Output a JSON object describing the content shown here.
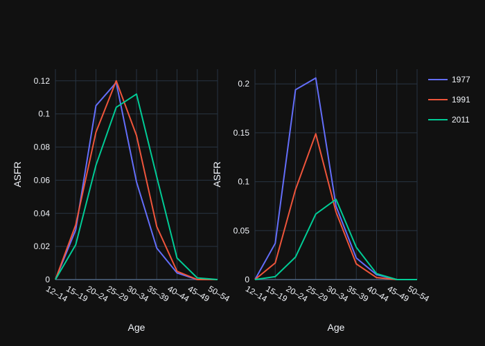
{
  "chart_data": {
    "type": "line",
    "categories": [
      "12–14",
      "15–19",
      "20–24",
      "25–29",
      "30–34",
      "35–39",
      "40–44",
      "45–49",
      "50–54"
    ],
    "legend": {
      "placement": "top-right",
      "entries": [
        "1977",
        "1991",
        "2011"
      ]
    },
    "colors": {
      "1977": "#636efa",
      "1991": "#ef553b",
      "2011": "#00cc96",
      "background": "#111111",
      "grid": "#283442",
      "text": "#f2f5fa"
    },
    "panels": [
      {
        "xlabel": "Age",
        "ylabel": "ASFR",
        "ylim": [
          0,
          0.127
        ],
        "yticks": [
          0,
          0.02,
          0.04,
          0.06,
          0.08,
          0.1,
          0.12
        ],
        "ytick_labels": [
          "0",
          "0.02",
          "0.04",
          "0.06",
          "0.08",
          "0.1",
          "0.12"
        ],
        "grid": true,
        "series": [
          {
            "name": "1977",
            "values": [
              0,
              0.03,
              0.105,
              0.119,
              0.059,
              0.019,
              0.004,
              0,
              0
            ]
          },
          {
            "name": "1991",
            "values": [
              0,
              0.033,
              0.089,
              0.12,
              0.087,
              0.032,
              0.005,
              0,
              0
            ]
          },
          {
            "name": "2011",
            "values": [
              0,
              0.021,
              0.069,
              0.104,
              0.112,
              0.062,
              0.013,
              0.001,
              0
            ]
          }
        ]
      },
      {
        "xlabel": "Age",
        "ylabel": "ASFR",
        "ylim": [
          0,
          0.215
        ],
        "yticks": [
          0,
          0.05,
          0.1,
          0.15,
          0.2
        ],
        "ytick_labels": [
          "0",
          "0.05",
          "0.1",
          "0.15",
          "0.2"
        ],
        "grid": true,
        "series": [
          {
            "name": "1977",
            "values": [
              0,
              0.037,
              0.194,
              0.206,
              0.075,
              0.022,
              0.005,
              0,
              0
            ]
          },
          {
            "name": "1991",
            "values": [
              0,
              0.017,
              0.092,
              0.149,
              0.069,
              0.016,
              0.002,
              0,
              0
            ]
          },
          {
            "name": "2011",
            "values": [
              0,
              0.003,
              0.023,
              0.067,
              0.082,
              0.033,
              0.006,
              0,
              0
            ]
          }
        ]
      }
    ]
  }
}
